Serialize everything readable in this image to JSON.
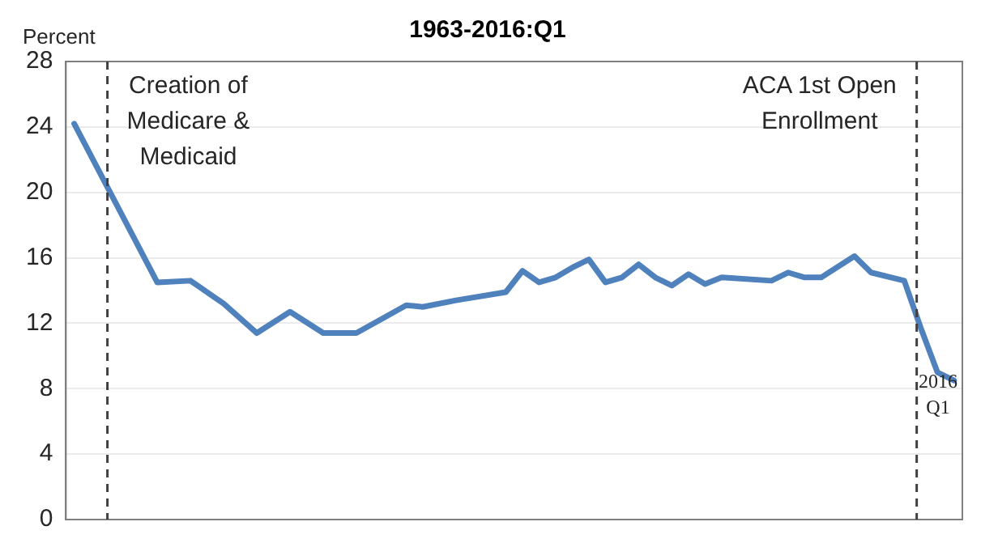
{
  "chart_data": {
    "type": "line",
    "title": "1963-2016:Q1",
    "ylabel": "Percent",
    "categories": [
      null,
      null,
      null,
      null,
      null,
      null,
      null,
      null,
      null,
      null,
      null,
      null,
      null,
      null,
      null,
      null,
      null,
      null,
      null,
      null,
      null,
      null,
      null,
      null,
      null,
      null,
      null,
      null,
      null,
      null,
      null,
      null,
      null,
      null,
      null,
      null,
      null,
      null,
      null,
      null,
      null,
      null,
      null,
      null,
      null,
      null,
      null,
      null,
      null,
      null,
      null,
      null,
      null,
      null
    ],
    "series": [
      {
        "color": "#4f81bd",
        "values": [
          24.2,
          null,
          null,
          null,
          null,
          14.5,
          null,
          14.6,
          null,
          13.2,
          null,
          11.4,
          null,
          12.7,
          null,
          11.4,
          null,
          11.4,
          null,
          null,
          13.1,
          13.0,
          null,
          13.4,
          null,
          null,
          13.9,
          15.2,
          14.5,
          14.8,
          15.4,
          15.9,
          14.5,
          14.8,
          15.6,
          14.8,
          14.3,
          15.0,
          14.4,
          14.8,
          null,
          null,
          14.6,
          15.1,
          14.8,
          14.8,
          null,
          16.1,
          15.1,
          null,
          14.6,
          11.7,
          9.0,
          8.5
        ]
      }
    ],
    "ylim": [
      0,
      28
    ],
    "yticks": [
      0,
      4,
      8,
      12,
      16,
      20,
      24,
      28
    ],
    "tick_labels": "y",
    "grid": "y",
    "legend": false,
    "marker": "none",
    "line_style": "solid",
    "annotations": [
      "Creation of Medicare & Medicaid",
      "ACA 1st Open Enrollment",
      "2016 Q1"
    ]
  }
}
